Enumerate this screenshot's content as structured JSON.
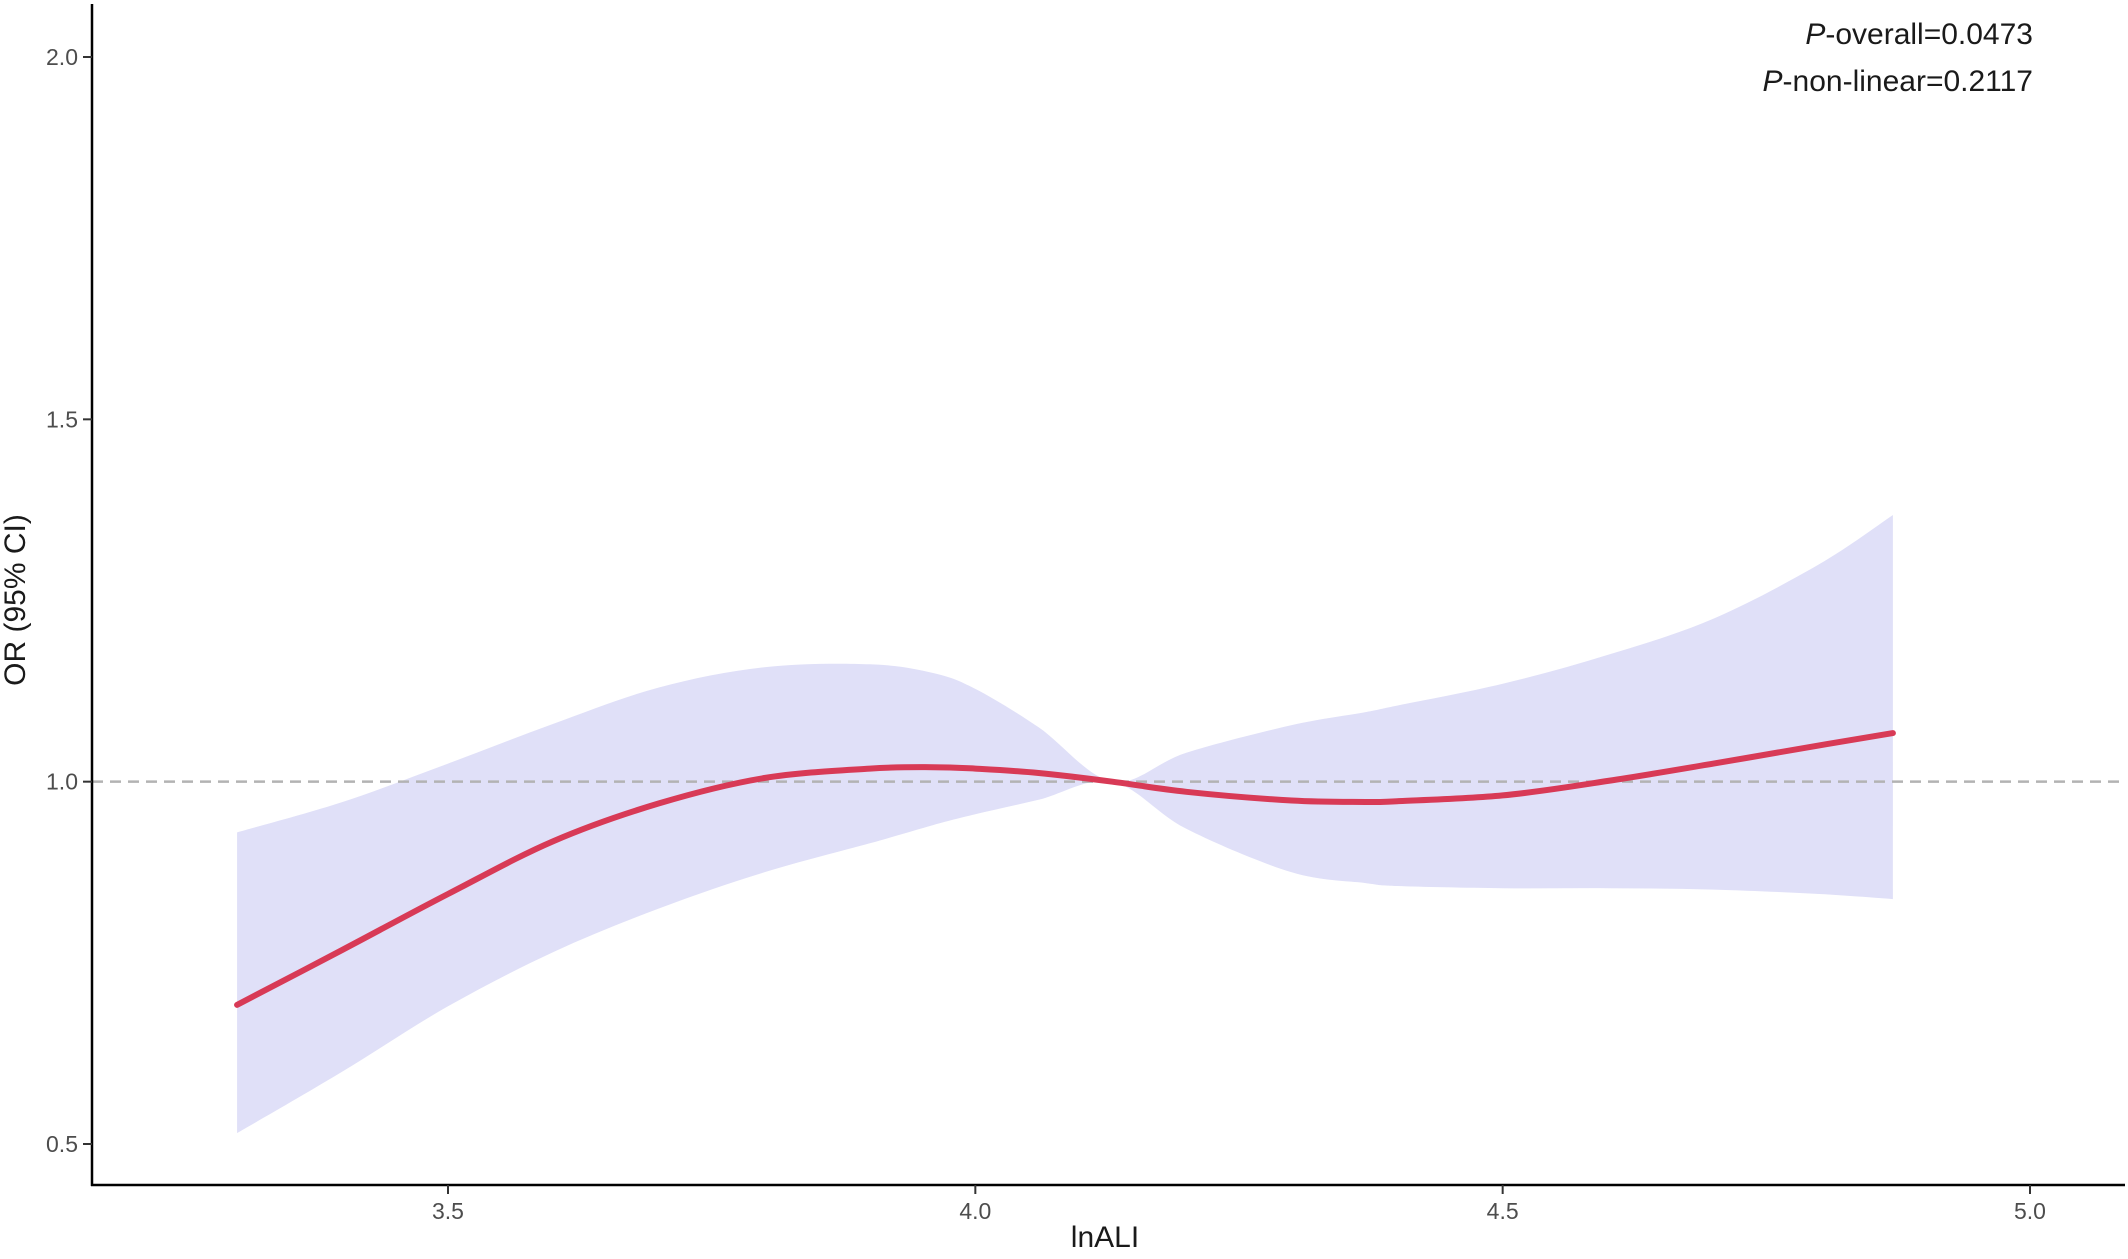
{
  "chart_data": {
    "type": "line",
    "title": "",
    "xlabel": "lnALI",
    "ylabel": "OR (95% CI)",
    "xlim": [
      3.23,
      5.09
    ],
    "ylim": [
      0.44,
      2.06
    ],
    "x_ticks": [
      3.5,
      4.0,
      4.5,
      5.0
    ],
    "x_tick_labels": [
      "3.5",
      "4.0",
      "4.5",
      "5.0"
    ],
    "y_ticks": [
      0.5,
      1.0,
      1.5,
      2.0
    ],
    "y_tick_labels": [
      "0.5",
      "1.0",
      "1.5",
      "2.0"
    ],
    "reference_line": {
      "y": 1.0,
      "style": "dashed",
      "color": "#b3b3b3"
    },
    "grid": false,
    "legend": "none",
    "annotations": [
      {
        "italic": "P",
        "text": "-overall=0.0473"
      },
      {
        "italic": "P",
        "text": "-non-linear=0.2117"
      }
    ],
    "series": [
      {
        "color": "#d83a56",
        "band_color": "#e0e0f8",
        "x": [
          3.3,
          3.4,
          3.5,
          3.6,
          3.7,
          3.8,
          3.9,
          3.96,
          4.0,
          4.06,
          4.13,
          4.2,
          4.3,
          4.37,
          4.4,
          4.5,
          4.6,
          4.7,
          4.8,
          4.87
        ],
        "y": [
          0.692,
          0.768,
          0.845,
          0.918,
          0.97,
          1.005,
          1.018,
          1.02,
          1.018,
          1.012,
          1.0,
          0.986,
          0.974,
          0.972,
          0.973,
          0.981,
          1.001,
          1.025,
          1.05,
          1.067
        ],
        "lower": [
          0.515,
          0.6,
          0.69,
          0.765,
          0.825,
          0.875,
          0.915,
          0.94,
          0.955,
          0.975,
          1.0,
          0.935,
          0.875,
          0.86,
          0.856,
          0.853,
          0.853,
          0.851,
          0.845,
          0.838
        ],
        "upper": [
          0.93,
          0.972,
          1.025,
          1.08,
          1.13,
          1.158,
          1.162,
          1.15,
          1.128,
          1.075,
          1.0,
          1.04,
          1.078,
          1.096,
          1.105,
          1.135,
          1.175,
          1.225,
          1.3,
          1.368
        ]
      }
    ]
  }
}
